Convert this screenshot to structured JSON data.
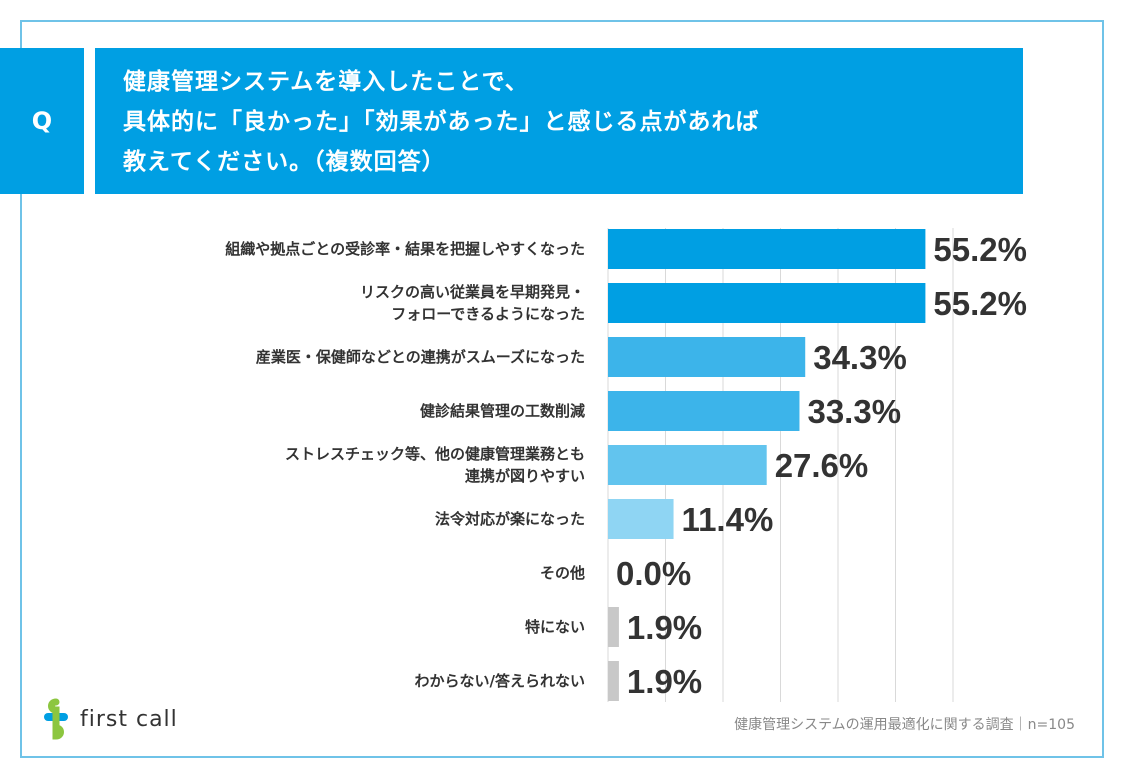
{
  "header": {
    "badge": "Q",
    "question_lines": [
      "健康管理システムを導入したことで、",
      "具体的に「良かった」「効果があった」と感じる点があれば",
      "教えてください。（複数回答）"
    ]
  },
  "chart_data": {
    "type": "bar",
    "orientation": "horizontal",
    "title": "健康管理システムを導入したことで、具体的に「良かった」「効果があった」と感じる点があれば教えてください。（複数回答）",
    "unit": "%",
    "xlim": [
      0,
      60
    ],
    "grid": true,
    "categories": [
      [
        "組織や拠点ごとの受診率・結果を把握しやすくなった"
      ],
      [
        "リスクの高い従業員を早期発見・",
        "フォローできるようになった"
      ],
      [
        "産業医・保健師などとの連携がスムーズになった"
      ],
      [
        "健診結果管理の工数削減"
      ],
      [
        "ストレスチェック等、他の健康管理業務とも",
        "連携が図りやすい"
      ],
      [
        "法令対応が楽になった"
      ],
      [
        "その他"
      ],
      [
        "特にない"
      ],
      [
        "わからない/答えられない"
      ]
    ],
    "values": [
      55.2,
      55.2,
      34.3,
      33.3,
      27.6,
      11.4,
      0.0,
      1.9,
      1.9
    ],
    "value_labels": [
      "55.2%",
      "55.2%",
      "34.3%",
      "33.3%",
      "27.6%",
      "11.4%",
      "0.0%",
      "1.9%",
      "1.9%"
    ],
    "bar_colors": [
      "#009fe3",
      "#009fe3",
      "#3cb4ea",
      "#3cb4ea",
      "#62c4ee",
      "#8fd5f3",
      "#c8c8c8",
      "#c8c8c8",
      "#c8c8c8"
    ],
    "grid_color": "#d9d9d9"
  },
  "footer": {
    "logo_text": "first call",
    "source": "健康管理システムの運用最適化に関する調査｜n=105"
  }
}
